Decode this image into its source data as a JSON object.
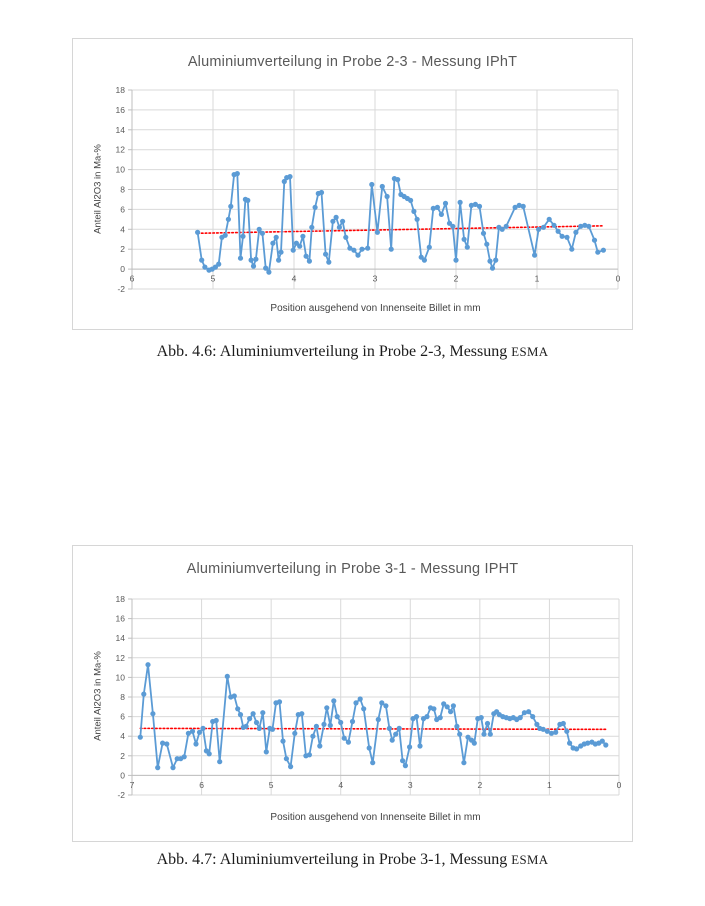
{
  "page": {
    "background": "#ffffff"
  },
  "figures": [
    {
      "chart_title": "Aluminiumverteilung in Probe 2-3 - Messung IPhT",
      "y_axis_title": "Anteil Al2O3 in Ma-%",
      "x_axis_title": "Position ausgehend von Innenseite Billet in mm",
      "caption": {
        "label": "Abb. 4.6:",
        "text": "Aluminiumverteilung in Probe 2-3, Messung",
        "method_smallcaps": "ESMA"
      }
    },
    {
      "chart_title": "Aluminiumverteilung in Probe 3-1 - Messung IPHT",
      "y_axis_title": "Anteil Al2O3 in Ma-%",
      "x_axis_title": "Position ausgehend von Innenseite Billet in mm",
      "caption": {
        "label": "Abb. 4.7:",
        "text": "Aluminiumverteilung in Probe 3-1, Messung",
        "method_smallcaps": "ESMA"
      }
    }
  ],
  "colors": {
    "series_blue": "#5b9bd5",
    "trend_red": "#ff0000",
    "gridline": "#d9d9d9",
    "axis_line": "#bfbfbf",
    "tick_label": "#595959",
    "chart_title": "#595959"
  },
  "chart_data": [
    {
      "type": "line",
      "title": "Aluminiumverteilung in Probe 2-3 - Messung IPhT",
      "xlabel": "Position ausgehend von Innenseite Billet in mm",
      "ylabel": "Anteil Al2O3 in Ma-%",
      "xlim": [
        6,
        0
      ],
      "ylim": [
        -2,
        18
      ],
      "x_reversed": true,
      "grid": true,
      "legend": false,
      "xticks": [
        6,
        5,
        4,
        3,
        2,
        1,
        0
      ],
      "yticks": [
        -2,
        0,
        2,
        4,
        6,
        8,
        10,
        12,
        14,
        16,
        18
      ],
      "series": [
        {
          "color": "#5b9bd5",
          "marker": "circle",
          "x": [
            5.19,
            5.14,
            5.1,
            5.05,
            5.01,
            4.97,
            4.93,
            4.89,
            4.85,
            4.81,
            4.78,
            4.74,
            4.7,
            4.66,
            4.63,
            4.6,
            4.57,
            4.53,
            4.5,
            4.47,
            4.43,
            4.39,
            4.35,
            4.31,
            4.26,
            4.22,
            4.19,
            4.16,
            4.12,
            4.09,
            4.05,
            4.01,
            3.97,
            3.93,
            3.89,
            3.85,
            3.81,
            3.78,
            3.74,
            3.7,
            3.66,
            3.61,
            3.57,
            3.52,
            3.48,
            3.44,
            3.4,
            3.36,
            3.31,
            3.26,
            3.21,
            3.16,
            3.09,
            3.04,
            2.97,
            2.91,
            2.85,
            2.8,
            2.76,
            2.72,
            2.68,
            2.64,
            2.6,
            2.56,
            2.52,
            2.48,
            2.43,
            2.39,
            2.33,
            2.28,
            2.23,
            2.18,
            2.13,
            2.08,
            2.04,
            2.0,
            1.95,
            1.9,
            1.86,
            1.81,
            1.76,
            1.71,
            1.66,
            1.62,
            1.58,
            1.55,
            1.51,
            1.47,
            1.43,
            1.38,
            1.27,
            1.22,
            1.17,
            1.03,
            0.98,
            0.92,
            0.85,
            0.79,
            0.74,
            0.69,
            0.63,
            0.57,
            0.52,
            0.46,
            0.41,
            0.36,
            0.29,
            0.25,
            0.18
          ],
          "y": [
            3.7,
            0.9,
            0.2,
            -0.1,
            0.0,
            0.2,
            0.5,
            3.2,
            3.4,
            5.0,
            6.3,
            9.5,
            9.6,
            1.1,
            3.3,
            7.0,
            6.9,
            0.9,
            0.3,
            1.0,
            4.0,
            3.6,
            0.1,
            -0.3,
            2.6,
            3.2,
            0.9,
            1.7,
            8.8,
            9.2,
            9.3,
            1.9,
            2.6,
            2.3,
            3.3,
            1.3,
            0.8,
            4.2,
            6.2,
            7.6,
            7.7,
            1.5,
            0.7,
            4.8,
            5.2,
            4.2,
            4.8,
            3.2,
            2.1,
            1.9,
            1.4,
            2.0,
            2.1,
            8.5,
            3.7,
            8.3,
            7.3,
            2.0,
            9.1,
            9.0,
            7.5,
            7.3,
            7.1,
            6.9,
            5.8,
            5.0,
            1.2,
            0.9,
            2.2,
            6.1,
            6.2,
            5.5,
            6.6,
            4.6,
            4.3,
            0.9,
            6.7,
            3.0,
            2.2,
            6.4,
            6.5,
            6.3,
            3.6,
            2.5,
            0.8,
            0.1,
            0.9,
            4.2,
            4.0,
            4.3,
            6.2,
            6.4,
            6.3,
            1.4,
            4.0,
            4.2,
            5.0,
            4.4,
            3.8,
            3.3,
            3.2,
            2.0,
            3.7,
            4.3,
            4.4,
            4.3,
            2.9,
            1.7,
            1.9
          ]
        }
      ],
      "trendline": {
        "color": "#ff0000",
        "style": "dotted",
        "x": [
          5.19,
          0.18
        ],
        "y": [
          3.6,
          4.35
        ]
      }
    },
    {
      "type": "line",
      "title": "Aluminiumverteilung in Probe 3-1 - Messung IPHT",
      "xlabel": "Position ausgehend von Innenseite Billet in mm",
      "ylabel": "Anteil Al2O3 in Ma-%",
      "xlim": [
        7,
        0
      ],
      "ylim": [
        -2,
        18
      ],
      "x_reversed": true,
      "grid": true,
      "legend": false,
      "xticks": [
        7,
        6,
        5,
        4,
        3,
        2,
        1,
        0
      ],
      "yticks": [
        -2,
        0,
        2,
        4,
        6,
        8,
        10,
        12,
        14,
        16,
        18
      ],
      "series": [
        {
          "color": "#5b9bd5",
          "marker": "circle",
          "x": [
            6.88,
            6.83,
            6.77,
            6.7,
            6.63,
            6.56,
            6.5,
            6.41,
            6.35,
            6.3,
            6.25,
            6.19,
            6.13,
            6.08,
            6.03,
            5.98,
            5.93,
            5.89,
            5.84,
            5.79,
            5.74,
            5.63,
            5.58,
            5.53,
            5.48,
            5.44,
            5.4,
            5.36,
            5.31,
            5.26,
            5.21,
            5.17,
            5.12,
            5.07,
            5.02,
            4.98,
            4.93,
            4.88,
            4.83,
            4.78,
            4.72,
            4.66,
            4.61,
            4.56,
            4.5,
            4.45,
            4.4,
            4.35,
            4.3,
            4.24,
            4.2,
            4.15,
            4.1,
            4.05,
            4.0,
            3.95,
            3.89,
            3.83,
            3.78,
            3.72,
            3.67,
            3.59,
            3.54,
            3.46,
            3.41,
            3.35,
            3.3,
            3.26,
            3.21,
            3.16,
            3.11,
            3.07,
            3.01,
            2.96,
            2.91,
            2.86,
            2.81,
            2.76,
            2.71,
            2.66,
            2.62,
            2.57,
            2.52,
            2.47,
            2.42,
            2.38,
            2.33,
            2.29,
            2.23,
            2.17,
            2.12,
            2.08,
            2.03,
            1.98,
            1.94,
            1.89,
            1.85,
            1.8,
            1.76,
            1.72,
            1.67,
            1.62,
            1.57,
            1.52,
            1.47,
            1.42,
            1.36,
            1.3,
            1.24,
            1.18,
            1.14,
            1.09,
            1.03,
            0.97,
            0.91,
            0.85,
            0.8,
            0.75,
            0.71,
            0.66,
            0.61,
            0.55,
            0.5,
            0.45,
            0.39,
            0.34,
            0.29,
            0.24,
            0.19
          ],
          "y": [
            3.9,
            8.3,
            11.3,
            6.3,
            0.8,
            3.3,
            3.2,
            0.8,
            1.7,
            1.7,
            1.9,
            4.3,
            4.5,
            3.2,
            4.4,
            4.8,
            2.5,
            2.2,
            5.5,
            5.6,
            1.4,
            10.1,
            8.0,
            8.1,
            6.8,
            6.2,
            4.9,
            5.0,
            5.8,
            6.3,
            5.4,
            4.8,
            6.4,
            2.4,
            4.8,
            4.7,
            7.4,
            7.5,
            3.5,
            1.7,
            0.9,
            4.3,
            6.2,
            6.3,
            2.0,
            2.1,
            4.0,
            5.0,
            3.0,
            5.2,
            6.9,
            5.1,
            7.6,
            6.0,
            5.4,
            3.8,
            3.4,
            5.5,
            7.4,
            7.8,
            6.8,
            2.8,
            1.3,
            5.7,
            7.4,
            7.1,
            4.8,
            3.6,
            4.2,
            4.8,
            1.5,
            1.0,
            2.9,
            5.8,
            6.0,
            3.0,
            5.8,
            6.0,
            6.9,
            6.8,
            5.7,
            5.9,
            7.3,
            7.0,
            6.5,
            7.1,
            5.0,
            4.2,
            1.3,
            3.9,
            3.6,
            3.3,
            5.8,
            5.9,
            4.2,
            5.3,
            4.2,
            6.3,
            6.5,
            6.2,
            6.0,
            5.9,
            5.8,
            5.9,
            5.7,
            5.9,
            6.4,
            6.5,
            6.0,
            5.2,
            4.8,
            4.7,
            4.5,
            4.3,
            4.4,
            5.2,
            5.3,
            4.5,
            3.3,
            2.8,
            2.7,
            3.0,
            3.2,
            3.3,
            3.4,
            3.2,
            3.3,
            3.5,
            3.1
          ]
        }
      ],
      "trendline": {
        "color": "#ff0000",
        "style": "dotted",
        "x": [
          6.88,
          0.19
        ],
        "y": [
          4.8,
          4.7
        ]
      }
    }
  ]
}
